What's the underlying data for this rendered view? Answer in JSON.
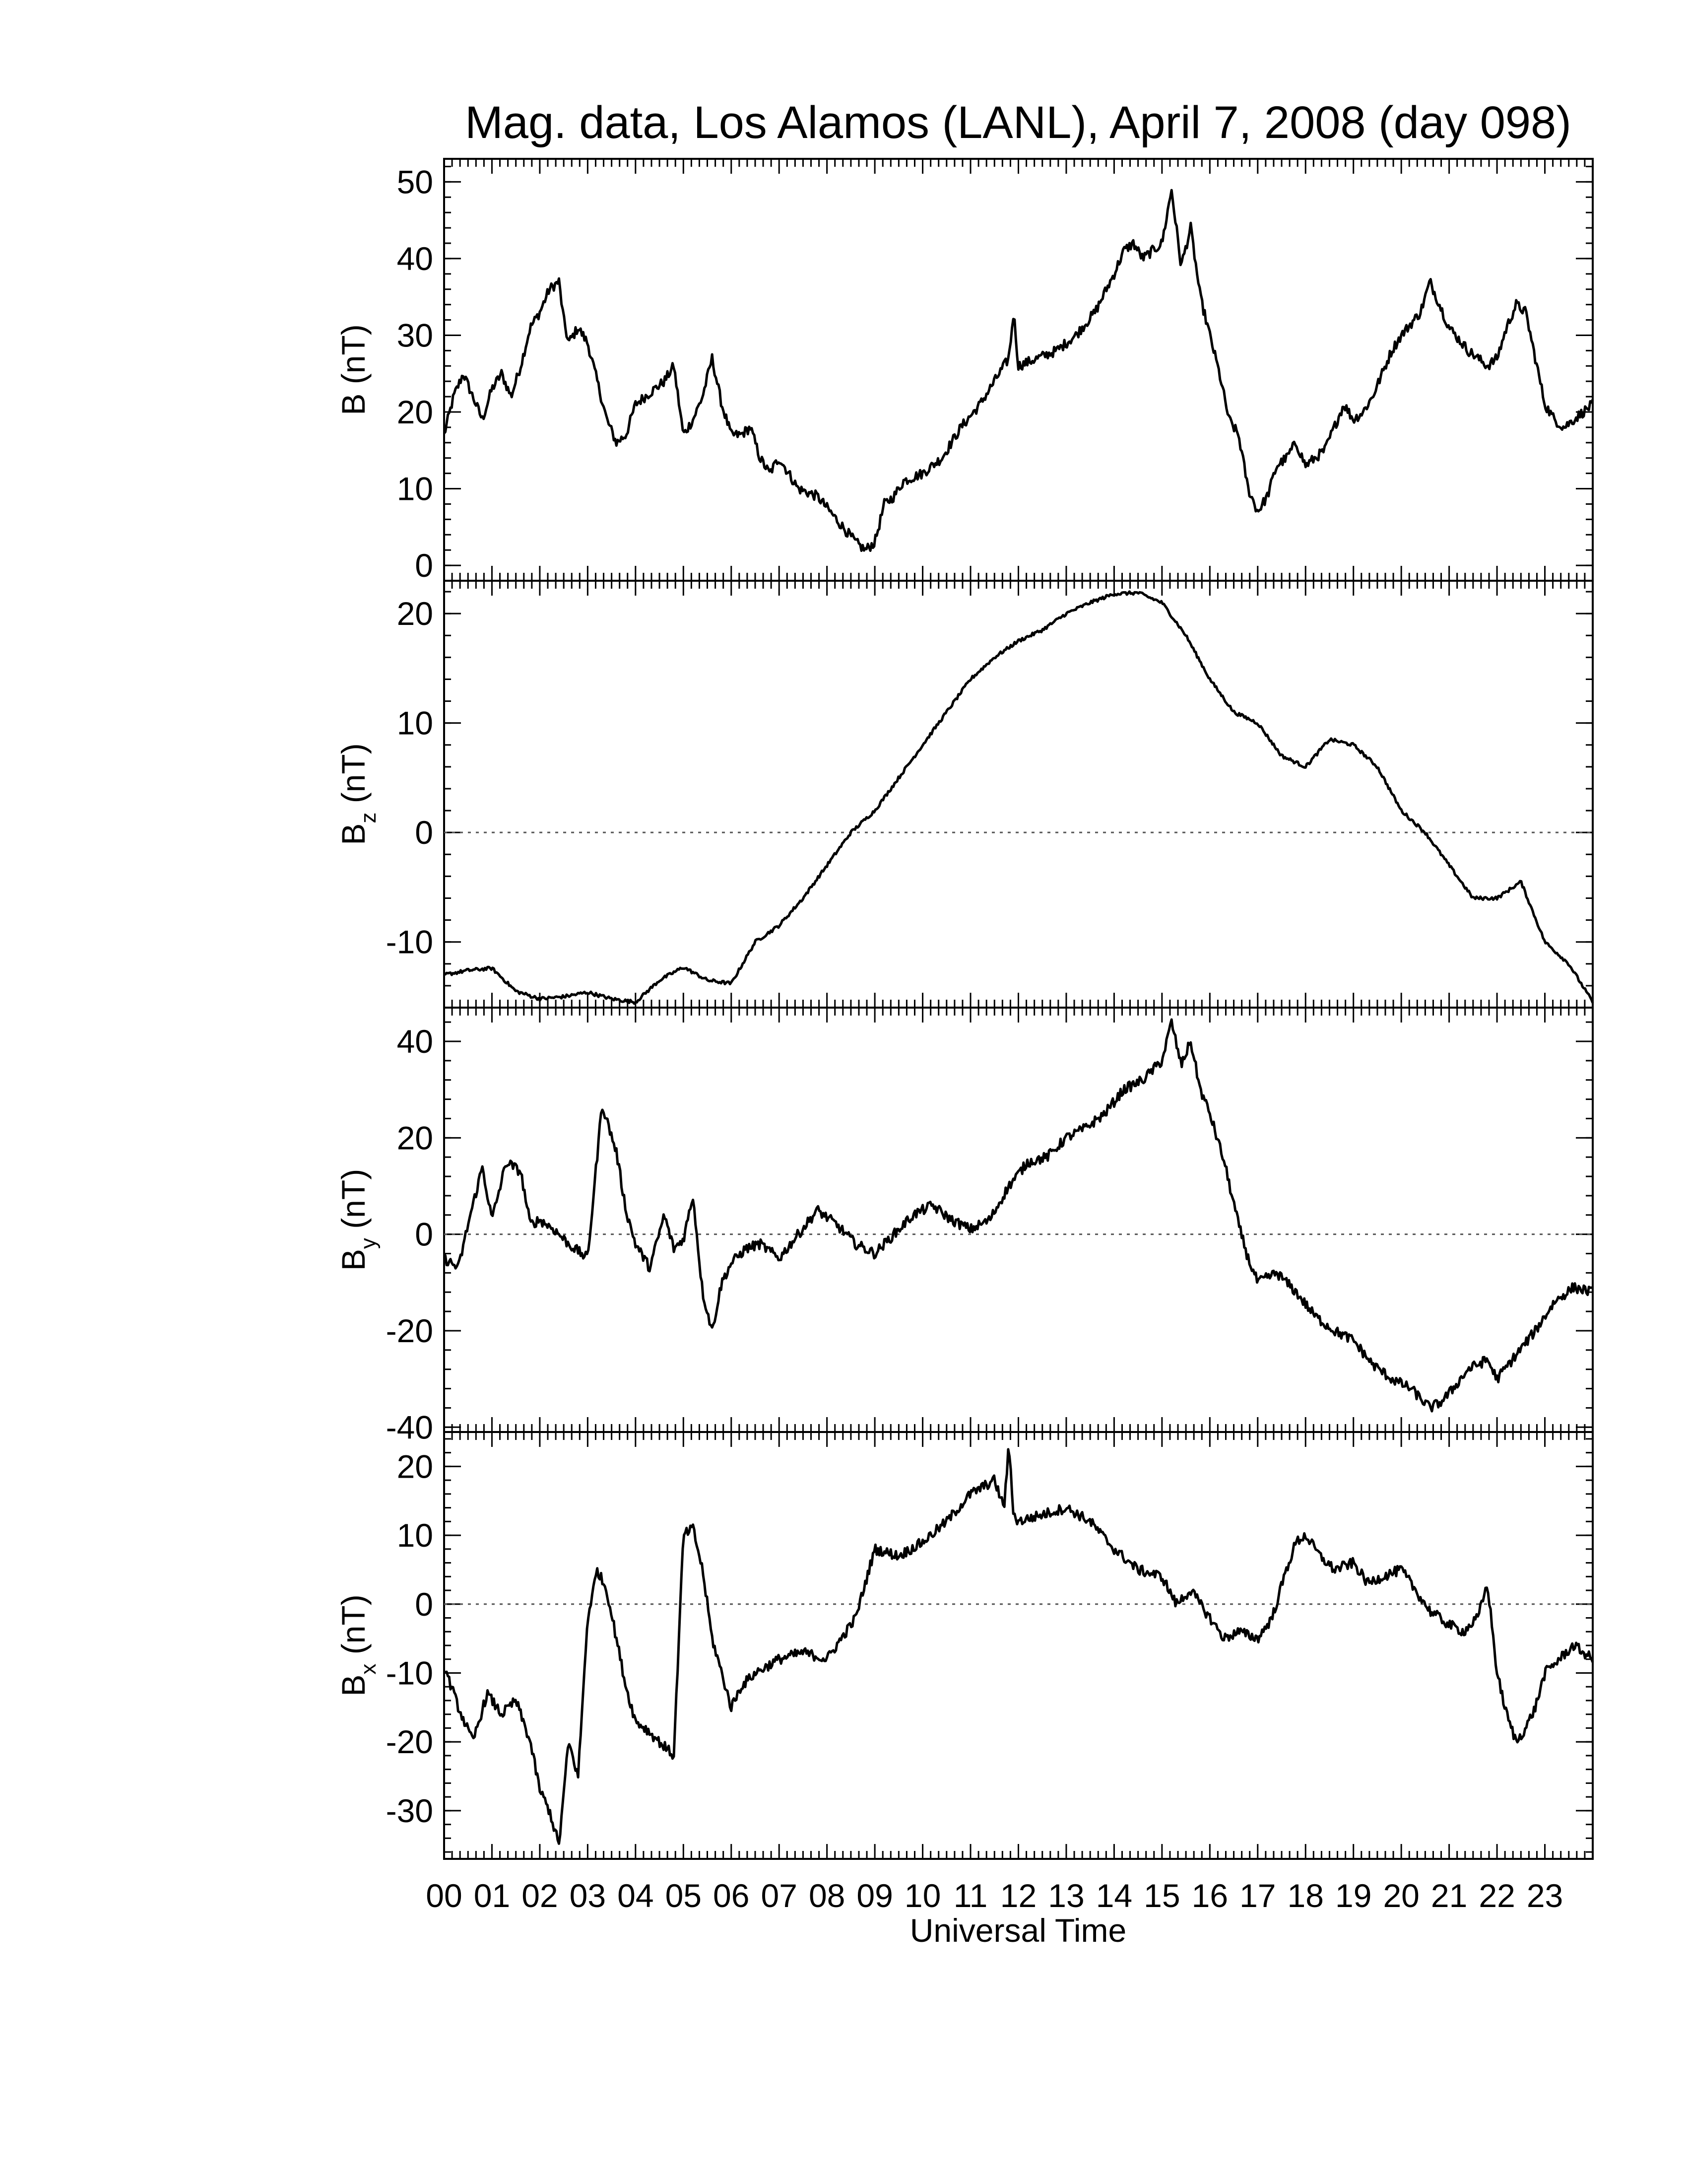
{
  "title": "Mag. data, Los Alamos (LANL), April 7, 2008 (day 098)",
  "xlabel": "Universal Time",
  "colors": {
    "line": "#000000",
    "zero_line": "#555555",
    "background": "#ffffff"
  },
  "chart_data": [
    {
      "type": "line",
      "ylabel_main": "B",
      "ylabel_sub": "",
      "ylabel_unit": " (nT)",
      "ylim": [
        -2,
        53
      ],
      "yticks": [
        0,
        10,
        20,
        30,
        40,
        50
      ],
      "zero_line": false,
      "xlim": [
        0,
        24
      ],
      "x": [
        0,
        0.2,
        0.4,
        0.6,
        0.8,
        1.0,
        1.2,
        1.4,
        1.6,
        1.8,
        2.0,
        2.2,
        2.4,
        2.5,
        2.6,
        2.8,
        3.0,
        3.2,
        3.4,
        3.6,
        3.8,
        4.0,
        4.2,
        4.4,
        4.6,
        4.8,
        5.0,
        5.2,
        5.4,
        5.6,
        5.8,
        6.0,
        6.2,
        6.4,
        6.6,
        6.8,
        7.0,
        7.4,
        7.8,
        8.2,
        8.6,
        8.8,
        9.0,
        9.2,
        9.4,
        9.6,
        10.0,
        10.4,
        10.8,
        11.2,
        11.5,
        11.8,
        11.9,
        12.0,
        12.4,
        12.8,
        13.2,
        13.6,
        14.0,
        14.2,
        14.4,
        14.6,
        14.8,
        15.0,
        15.2,
        15.4,
        15.6,
        15.8,
        16.0,
        16.2,
        16.4,
        16.6,
        16.8,
        17.0,
        17.2,
        17.4,
        17.6,
        17.8,
        18.0,
        18.2,
        18.4,
        18.6,
        18.8,
        19.0,
        19.2,
        19.4,
        19.6,
        19.8,
        20.0,
        20.4,
        20.6,
        20.8,
        21.0,
        21.4,
        21.8,
        22.0,
        22.2,
        22.4,
        22.6,
        22.8,
        23.0,
        23.2,
        23.4,
        23.6,
        24.0
      ],
      "values": [
        17,
        22,
        25,
        22,
        19,
        23,
        25,
        22,
        26,
        31,
        33,
        36,
        37,
        32,
        29,
        31,
        29,
        24,
        19,
        16,
        17,
        21,
        22,
        23,
        24,
        26,
        17,
        19,
        22,
        27,
        21,
        17,
        17,
        18,
        14,
        12,
        14,
        10,
        9,
        6,
        3,
        2,
        3,
        8,
        9,
        11,
        12,
        14,
        18,
        21,
        24,
        27,
        33,
        26,
        27,
        28,
        30,
        33,
        38,
        41,
        42,
        40,
        41,
        42,
        49,
        39,
        44,
        35,
        30,
        25,
        19,
        17,
        10,
        7,
        9,
        13,
        14,
        16,
        13,
        14,
        15,
        18,
        21,
        19,
        20,
        22,
        25,
        28,
        30,
        33,
        37,
        34,
        31,
        28,
        26,
        27,
        31,
        34,
        33,
        27,
        21,
        19,
        18,
        19,
        21
      ]
    },
    {
      "type": "line",
      "ylabel_main": "B",
      "ylabel_sub": "z",
      "ylabel_unit": " (nT)",
      "ylim": [
        -16,
        23
      ],
      "yticks": [
        -10,
        0,
        10,
        20
      ],
      "zero_line": true,
      "xlim": [
        0,
        24
      ],
      "x": [
        0,
        0.5,
        1.0,
        1.5,
        2.0,
        2.5,
        3.0,
        3.5,
        4.0,
        4.5,
        5.0,
        5.5,
        6.0,
        6.5,
        7.0,
        7.5,
        8.0,
        8.5,
        9.0,
        9.5,
        10.0,
        10.5,
        11.0,
        11.5,
        12.0,
        12.5,
        13.0,
        13.5,
        14.0,
        14.5,
        15.0,
        15.5,
        16.0,
        16.5,
        17.0,
        17.5,
        18.0,
        18.5,
        19.0,
        19.5,
        20.0,
        20.5,
        21.0,
        21.5,
        22.0,
        22.5,
        23.0,
        23.5,
        24.0
      ],
      "values": [
        -13,
        -12.6,
        -12.4,
        -14.5,
        -15.2,
        -15,
        -14.6,
        -15.2,
        -15.5,
        -13.5,
        -12.3,
        -13.5,
        -13.8,
        -10,
        -8.5,
        -6,
        -3,
        0,
        2,
        5,
        8,
        11,
        14,
        16,
        17.5,
        18.5,
        20,
        21,
        21.8,
        21.9,
        21,
        18,
        14,
        11,
        10,
        7,
        6,
        8.5,
        8,
        6,
        2,
        0,
        -3,
        -6,
        -6,
        -4.5,
        -10,
        -12,
        -15.5
      ]
    },
    {
      "type": "line",
      "ylabel_main": "B",
      "ylabel_sub": "y",
      "ylabel_unit": " (nT)",
      "ylim": [
        -41,
        47
      ],
      "yticks": [
        -40,
        -20,
        0,
        20,
        40
      ],
      "zero_line": true,
      "xlim": [
        0,
        24
      ],
      "x": [
        0,
        0.3,
        0.5,
        0.8,
        1.0,
        1.3,
        1.6,
        1.8,
        2.0,
        2.3,
        2.6,
        3.0,
        3.3,
        3.6,
        3.8,
        4.0,
        4.3,
        4.6,
        4.8,
        5.0,
        5.2,
        5.4,
        5.6,
        5.8,
        6.0,
        6.3,
        6.6,
        7.0,
        7.4,
        7.8,
        8.2,
        8.6,
        9.0,
        9.4,
        9.8,
        10.2,
        10.6,
        11.0,
        11.4,
        11.8,
        12.2,
        12.6,
        13.0,
        13.4,
        13.8,
        14.2,
        14.6,
        15.0,
        15.2,
        15.4,
        15.6,
        15.8,
        16.0,
        16.3,
        16.6,
        16.8,
        17.0,
        17.4,
        17.8,
        18.2,
        18.6,
        19.0,
        19.4,
        19.8,
        20.2,
        20.6,
        20.8,
        21.0,
        21.4,
        21.8,
        22.0,
        22.4,
        22.8,
        23.2,
        23.6,
        24.0
      ],
      "values": [
        -5,
        -7,
        2,
        14,
        3,
        15,
        13,
        2,
        3,
        1,
        -2,
        -5,
        27,
        17,
        5,
        -2,
        -7,
        4,
        -3,
        -1,
        8,
        -12,
        -20,
        -10,
        -6,
        -3,
        -2,
        -5,
        0,
        5,
        2,
        -2,
        -4,
        0,
        4,
        6,
        3,
        1,
        3,
        10,
        15,
        16,
        20,
        22,
        25,
        30,
        32,
        36,
        44,
        35,
        40,
        30,
        25,
        15,
        2,
        -5,
        -10,
        -8,
        -12,
        -17,
        -20,
        -22,
        -27,
        -30,
        -32,
        -36,
        -35,
        -33,
        -28,
        -26,
        -30,
        -25,
        -20,
        -14,
        -11,
        -12
      ]
    },
    {
      "type": "line",
      "ylabel_main": "B",
      "ylabel_sub": "x",
      "ylabel_unit": " (nT)",
      "ylim": [
        -37,
        25
      ],
      "yticks": [
        -30,
        -20,
        -10,
        0,
        10,
        20
      ],
      "zero_line": true,
      "xlim": [
        0,
        24
      ],
      "x": [
        0,
        0.3,
        0.6,
        0.9,
        1.2,
        1.5,
        1.8,
        2.0,
        2.2,
        2.4,
        2.6,
        2.8,
        3.0,
        3.2,
        3.4,
        3.6,
        3.8,
        4.0,
        4.2,
        4.5,
        4.8,
        5.0,
        5.2,
        5.4,
        5.6,
        5.8,
        6.0,
        6.2,
        6.5,
        7.0,
        7.5,
        8.0,
        8.3,
        8.6,
        9.0,
        9.5,
        10.0,
        10.5,
        11.0,
        11.5,
        11.7,
        11.8,
        11.9,
        12.0,
        12.5,
        13.0,
        13.5,
        14.0,
        14.5,
        15.0,
        15.3,
        15.6,
        16.0,
        16.3,
        16.6,
        17.0,
        17.3,
        17.6,
        17.8,
        18.0,
        18.3,
        18.6,
        19.0,
        19.3,
        19.6,
        20.0,
        20.3,
        20.6,
        21.0,
        21.3,
        21.6,
        21.8,
        22.0,
        22.2,
        22.4,
        22.6,
        22.8,
        23.0,
        23.3,
        23.6,
        24.0
      ],
      "values": [
        -9,
        -15,
        -20,
        -13,
        -16,
        -14,
        -20,
        -27,
        -30,
        -35,
        -20,
        -25,
        -2,
        5,
        2,
        -5,
        -12,
        -17,
        -18,
        -20,
        -22,
        10,
        11,
        5,
        -5,
        -10,
        -15,
        -12,
        -10,
        -8,
        -7,
        -8,
        -5,
        -2,
        8,
        7,
        9,
        12,
        16,
        18,
        14,
        23,
        13,
        12,
        13,
        14,
        12,
        8,
        5,
        4,
        0,
        2,
        -2,
        -5,
        -4,
        -5,
        -2,
        5,
        9,
        10,
        7,
        5,
        6,
        3,
        4,
        5,
        2,
        -1,
        -3,
        -4,
        -2,
        3,
        -10,
        -16,
        -20,
        -18,
        -15,
        -10,
        -8,
        -6,
        -8
      ]
    }
  ],
  "x_ticks": [
    "00",
    "01",
    "02",
    "03",
    "04",
    "05",
    "06",
    "07",
    "08",
    "09",
    "10",
    "11",
    "12",
    "13",
    "14",
    "15",
    "16",
    "17",
    "18",
    "19",
    "20",
    "21",
    "22",
    "23"
  ]
}
